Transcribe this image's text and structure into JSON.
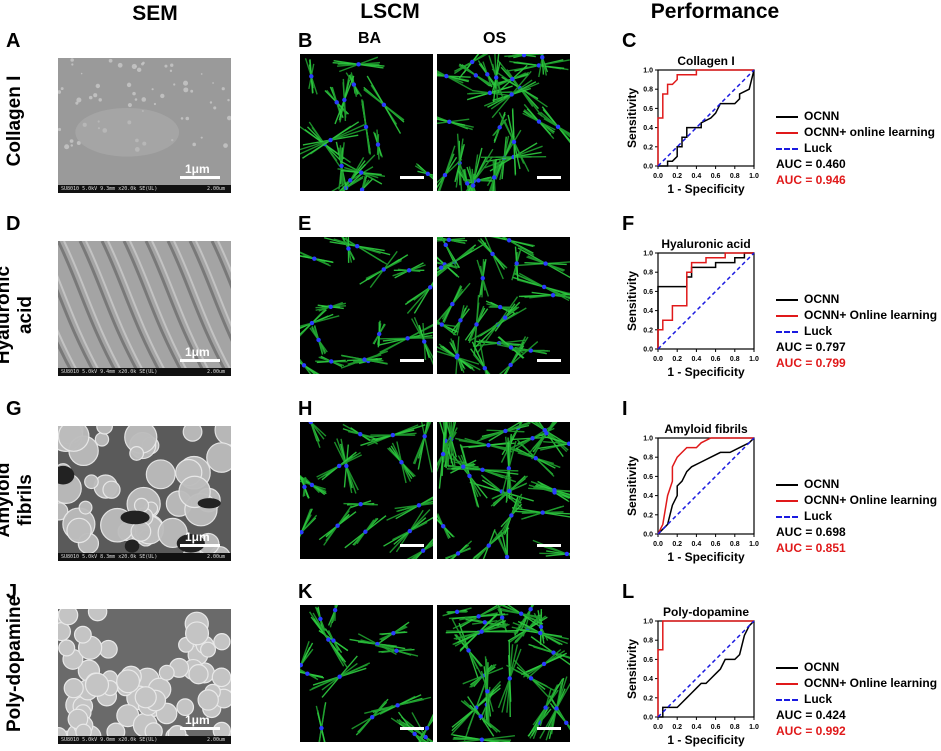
{
  "columns": {
    "sem": "SEM",
    "lscm": "LSCM",
    "performance": "Performance"
  },
  "lscm_subheads": {
    "left": "BA",
    "right": "OS"
  },
  "rows": [
    {
      "label_lines": [
        "Collagen I"
      ],
      "letters": [
        "A",
        "B",
        "C"
      ],
      "sem_scale": "1μm",
      "sem_info": "SU8010 5.0kV 9.3mm x20.0k SE(UL)",
      "sem_scale_value": "2.00um",
      "roc_title": "Collagen I",
      "legend": [
        "OCNN",
        "OCNN+ online learning",
        "Luck"
      ],
      "auc": [
        "AUC = 0.460",
        "AUC = 0.946"
      ]
    },
    {
      "label_lines": [
        "Hyaluronic",
        "acid"
      ],
      "letters": [
        "D",
        "E",
        "F"
      ],
      "sem_scale": "1μm",
      "sem_info": "SU8010 5.0kV 9.4mm x20.0k SE(UL)",
      "sem_scale_value": "2.00um",
      "roc_title": "Hyaluronic acid",
      "legend": [
        "OCNN",
        "OCNN+ Online learning",
        "Luck"
      ],
      "auc": [
        "AUC = 0.797",
        "AUC = 0.799"
      ]
    },
    {
      "label_lines": [
        "Amyloid",
        "fibrils"
      ],
      "letters": [
        "G",
        "H",
        "I"
      ],
      "sem_scale": "1μm",
      "sem_info": "SU8010 5.0kV 8.3mm x20.0k SE(UL)",
      "sem_scale_value": "2.00um",
      "roc_title": "Amyloid fibrils",
      "legend": [
        "OCNN",
        "OCNN+ Online learning",
        "Luck"
      ],
      "auc": [
        "AUC = 0.698",
        "AUC = 0.851"
      ]
    },
    {
      "label_lines": [
        "Poly-dopamine"
      ],
      "letters": [
        "J",
        "K",
        "L"
      ],
      "sem_scale": "1μm",
      "sem_info": "SU8010 5.0kV 9.0mm x20.0k SE(UL)",
      "sem_scale_value": "2.00um",
      "roc_title": "Poly-dopamine",
      "legend": [
        "OCNN",
        "OCNN+ Online learning",
        "Luck"
      ],
      "auc": [
        "AUC = 0.424",
        "AUC = 0.992"
      ]
    }
  ],
  "colors": {
    "ocnn": "#000000",
    "online": "#e0191a",
    "luck": "#1a1ae0",
    "cell_green": "#2ecc40",
    "nucleus_blue": "#2a3cff"
  },
  "chart_data": [
    {
      "type": "line",
      "title": "Collagen I",
      "xlabel": "1 - Specificity",
      "ylabel": "Sensitivity",
      "xlim": [
        0,
        1
      ],
      "ylim": [
        0,
        1
      ],
      "xticks": [
        "0.0",
        "0.2",
        "0.4",
        "0.6",
        "0.8",
        "1.0"
      ],
      "yticks": [
        "0.0",
        "0.2",
        "0.4",
        "0.6",
        "0.8",
        "1.0"
      ],
      "series": [
        {
          "name": "OCNN",
          "x": [
            0,
            0.1,
            0.1,
            0.15,
            0.2,
            0.2,
            0.25,
            0.25,
            0.3,
            0.3,
            0.45,
            0.45,
            0.55,
            0.6,
            0.65,
            0.8,
            0.85,
            0.85,
            0.95,
            1
          ],
          "y": [
            0,
            0,
            0.05,
            0.05,
            0.1,
            0.2,
            0.2,
            0.3,
            0.3,
            0.4,
            0.4,
            0.45,
            0.5,
            0.55,
            0.65,
            0.65,
            0.7,
            0.75,
            0.8,
            1
          ]
        },
        {
          "name": "OCNN+ online learning",
          "x": [
            0,
            0,
            0.05,
            0.05,
            0.1,
            0.1,
            0.15,
            0.2,
            0.2,
            0.3,
            0.4,
            0.4,
            1
          ],
          "y": [
            0,
            0.5,
            0.5,
            0.75,
            0.75,
            0.85,
            0.85,
            0.9,
            0.95,
            0.95,
            0.95,
            1,
            1
          ]
        },
        {
          "name": "Luck",
          "x": [
            0,
            1
          ],
          "y": [
            0,
            1
          ]
        }
      ]
    },
    {
      "type": "line",
      "title": "Hyaluronic acid",
      "xlabel": "1 - Specificity",
      "ylabel": "Sensitivity",
      "xlim": [
        0,
        1
      ],
      "ylim": [
        0,
        1
      ],
      "xticks": [
        "0.0",
        "0.2",
        "0.4",
        "0.6",
        "0.8",
        "1.0"
      ],
      "yticks": [
        "0.0",
        "0.2",
        "0.4",
        "0.6",
        "0.8",
        "1.0"
      ],
      "series": [
        {
          "name": "OCNN",
          "x": [
            0,
            0,
            0.3,
            0.3,
            0.35,
            0.35,
            0.6,
            0.6,
            0.8,
            0.8,
            0.9,
            0.9,
            1
          ],
          "y": [
            0,
            0.65,
            0.65,
            0.75,
            0.75,
            0.85,
            0.85,
            0.9,
            0.9,
            0.95,
            0.95,
            1,
            1
          ]
        },
        {
          "name": "OCNN+ Online learning",
          "x": [
            0,
            0,
            0.05,
            0.05,
            0.15,
            0.15,
            0.3,
            0.3,
            0.35,
            0.35,
            0.5,
            0.5,
            0.7,
            0.7,
            1
          ],
          "y": [
            0,
            0.2,
            0.2,
            0.3,
            0.3,
            0.45,
            0.45,
            0.8,
            0.8,
            0.9,
            0.9,
            0.95,
            0.95,
            1,
            1
          ]
        },
        {
          "name": "Luck",
          "x": [
            0,
            1
          ],
          "y": [
            0,
            1
          ]
        }
      ]
    },
    {
      "type": "line",
      "title": "Amyloid fibrils",
      "xlabel": "1 - Specificity",
      "ylabel": "Sensitivity",
      "xlim": [
        0,
        1
      ],
      "ylim": [
        0,
        1
      ],
      "xticks": [
        "0.0",
        "0.2",
        "0.4",
        "0.6",
        "0.8",
        "1.0"
      ],
      "yticks": [
        "0.0",
        "0.2",
        "0.4",
        "0.6",
        "0.8",
        "1.0"
      ],
      "series": [
        {
          "name": "OCNN",
          "x": [
            0,
            0.05,
            0.1,
            0.15,
            0.2,
            0.2,
            0.25,
            0.3,
            0.35,
            0.45,
            0.55,
            0.65,
            0.75,
            0.85,
            0.95,
            1
          ],
          "y": [
            0,
            0.05,
            0.1,
            0.3,
            0.4,
            0.5,
            0.55,
            0.65,
            0.7,
            0.75,
            0.8,
            0.85,
            0.85,
            0.9,
            0.95,
            1
          ]
        },
        {
          "name": "OCNN+ Online learning",
          "x": [
            0,
            0.05,
            0.1,
            0.15,
            0.15,
            0.2,
            0.25,
            0.3,
            0.4,
            0.45,
            0.55,
            0.65,
            1
          ],
          "y": [
            0,
            0.1,
            0.4,
            0.55,
            0.7,
            0.8,
            0.85,
            0.9,
            0.9,
            0.95,
            1,
            1,
            1
          ]
        },
        {
          "name": "Luck",
          "x": [
            0,
            1
          ],
          "y": [
            0,
            1
          ]
        }
      ]
    },
    {
      "type": "line",
      "title": "Poly-dopamine",
      "xlabel": "1 - Specificity",
      "ylabel": "Sensitivity",
      "xlim": [
        0,
        1
      ],
      "ylim": [
        0,
        1
      ],
      "xticks": [
        "0.0",
        "0.2",
        "0.4",
        "0.6",
        "0.8",
        "1.0"
      ],
      "yticks": [
        "0.0",
        "0.2",
        "0.4",
        "0.6",
        "0.8",
        "1.0"
      ],
      "series": [
        {
          "name": "OCNN",
          "x": [
            0,
            0.05,
            0.05,
            0.2,
            0.25,
            0.3,
            0.35,
            0.4,
            0.45,
            0.5,
            0.55,
            0.6,
            0.65,
            0.7,
            0.8,
            0.85,
            0.9,
            0.95,
            1
          ],
          "y": [
            0,
            0,
            0.1,
            0.1,
            0.15,
            0.2,
            0.25,
            0.3,
            0.35,
            0.35,
            0.4,
            0.45,
            0.5,
            0.6,
            0.6,
            0.65,
            0.85,
            0.95,
            1
          ]
        },
        {
          "name": "OCNN+ Online learning",
          "x": [
            0,
            0,
            0.05,
            0.05,
            0.95,
            0.95,
            1
          ],
          "y": [
            0,
            0.7,
            0.7,
            1,
            1,
            1,
            1
          ]
        },
        {
          "name": "Luck",
          "x": [
            0,
            1
          ],
          "y": [
            0,
            1
          ]
        }
      ]
    }
  ]
}
